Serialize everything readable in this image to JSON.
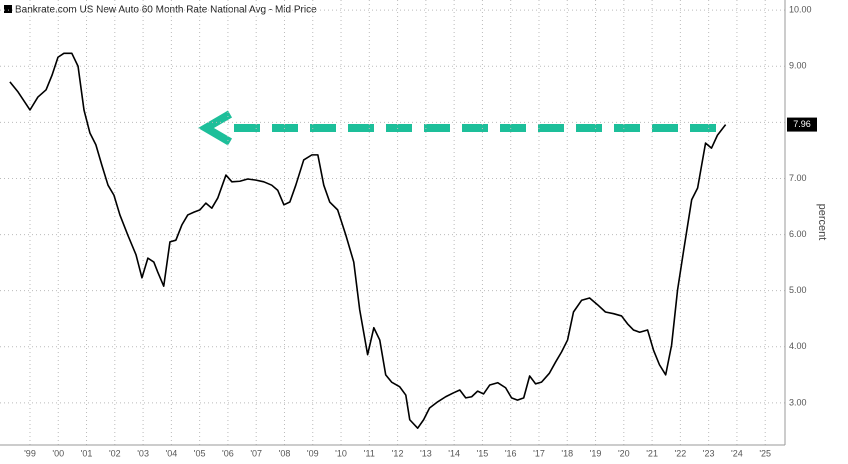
{
  "chart_data": {
    "type": "line",
    "series_name": "Bankrate.com US New Auto 60 Month Rate National Avg - Mid Price",
    "y_label": "percent",
    "color": "#000000",
    "x": [
      1998.79,
      1999.08,
      1999.5,
      1999.78,
      2000.07,
      2000.28,
      2000.49,
      2000.7,
      2000.98,
      2001.2,
      2001.41,
      2001.62,
      2001.83,
      2002.04,
      2002.26,
      2002.47,
      2002.68,
      2002.96,
      2003.25,
      2003.46,
      2003.67,
      2003.88,
      2004.02,
      2004.23,
      2004.45,
      2004.66,
      2004.87,
      2005.08,
      2005.3,
      2005.51,
      2005.72,
      2005.93,
      2006.14,
      2006.43,
      2006.64,
      2006.92,
      2007.2,
      2007.49,
      2007.77,
      2008.05,
      2008.26,
      2008.48,
      2008.69,
      2008.9,
      2009.18,
      2009.47,
      2009.68,
      2009.89,
      2010.1,
      2010.38,
      2010.67,
      2010.95,
      2011.16,
      2011.44,
      2011.66,
      2011.87,
      2012.08,
      2012.29,
      2012.57,
      2012.79,
      2012.93,
      2013.21,
      2013.42,
      2013.63,
      2013.92,
      2014.2,
      2014.48,
      2014.7,
      2014.91,
      2015.12,
      2015.33,
      2015.54,
      2015.76,
      2016.04,
      2016.32,
      2016.53,
      2016.74,
      2016.96,
      2017.17,
      2017.38,
      2017.59,
      2017.87,
      2018.09,
      2018.3,
      2018.51,
      2018.72,
      2019.01,
      2019.29,
      2019.57,
      2019.85,
      2020.14,
      2020.42,
      2020.63,
      2020.84,
      2021.06,
      2021.34,
      2021.55,
      2021.76,
      2021.98,
      2022.19,
      2022.4,
      2022.62,
      2022.9,
      2023.11,
      2023.39,
      2023.6,
      2023.81,
      2024.1
    ],
    "values": [
      8.72,
      8.54,
      8.22,
      8.45,
      8.58,
      8.84,
      9.16,
      9.23,
      9.23,
      9.0,
      8.22,
      7.81,
      7.6,
      7.24,
      6.88,
      6.7,
      6.35,
      5.99,
      5.64,
      5.23,
      5.58,
      5.51,
      5.33,
      5.08,
      5.87,
      5.9,
      6.17,
      6.35,
      6.4,
      6.44,
      6.56,
      6.47,
      6.65,
      7.06,
      6.94,
      6.95,
      6.99,
      6.97,
      6.94,
      6.88,
      6.79,
      6.53,
      6.58,
      6.88,
      7.33,
      7.42,
      7.42,
      6.88,
      6.58,
      6.44,
      5.99,
      5.51,
      4.66,
      3.86,
      4.34,
      4.12,
      3.5,
      3.37,
      3.29,
      3.14,
      2.7,
      2.55,
      2.7,
      2.91,
      3.02,
      3.11,
      3.18,
      3.23,
      3.09,
      3.11,
      3.21,
      3.16,
      3.32,
      3.36,
      3.27,
      3.09,
      3.05,
      3.09,
      3.48,
      3.34,
      3.37,
      3.53,
      3.73,
      3.91,
      4.12,
      4.62,
      4.83,
      4.87,
      4.75,
      4.62,
      4.59,
      4.55,
      4.41,
      4.3,
      4.26,
      4.3,
      3.94,
      3.68,
      3.5,
      4.03,
      5.01,
      5.73,
      6.62,
      6.83,
      7.63,
      7.54,
      7.77,
      7.96
    ],
    "xlim": [
      1998.44,
      2026.2
    ],
    "xticks": [
      {
        "value": 1999.5,
        "label": "'99"
      },
      {
        "value": 2000.5,
        "label": "'00"
      },
      {
        "value": 2001.5,
        "label": "'01"
      },
      {
        "value": 2002.5,
        "label": "'02"
      },
      {
        "value": 2003.5,
        "label": "'03"
      },
      {
        "value": 2004.5,
        "label": "'04"
      },
      {
        "value": 2005.5,
        "label": "'05"
      },
      {
        "value": 2006.5,
        "label": "'06"
      },
      {
        "value": 2007.5,
        "label": "'07"
      },
      {
        "value": 2008.5,
        "label": "'08"
      },
      {
        "value": 2009.5,
        "label": "'09"
      },
      {
        "value": 2010.5,
        "label": "'10"
      },
      {
        "value": 2011.5,
        "label": "'11"
      },
      {
        "value": 2012.5,
        "label": "'12"
      },
      {
        "value": 2013.5,
        "label": "'13"
      },
      {
        "value": 2014.5,
        "label": "'14"
      },
      {
        "value": 2015.5,
        "label": "'15"
      },
      {
        "value": 2016.5,
        "label": "'16"
      },
      {
        "value": 2017.5,
        "label": "'17"
      },
      {
        "value": 2018.5,
        "label": "'18"
      },
      {
        "value": 2019.5,
        "label": "'19"
      },
      {
        "value": 2020.5,
        "label": "'20"
      },
      {
        "value": 2021.5,
        "label": "'21"
      },
      {
        "value": 2022.5,
        "label": "'22"
      },
      {
        "value": 2023.5,
        "label": "'23"
      },
      {
        "value": 2024.5,
        "label": "'24"
      },
      {
        "value": 2025.5,
        "label": "'25"
      }
    ],
    "ylim": [
      2.25,
      10.18
    ],
    "yticks": [
      {
        "value": 3,
        "label": "3.00"
      },
      {
        "value": 4,
        "label": "4.00"
      },
      {
        "value": 5,
        "label": "5.00"
      },
      {
        "value": 6,
        "label": "6.00"
      },
      {
        "value": 7,
        "label": "7.00"
      },
      {
        "value": 8,
        "label": "8.00"
      },
      {
        "value": 9,
        "label": "9.00"
      },
      {
        "value": 10,
        "label": "10.00"
      }
    ],
    "grid": true
  }
}
